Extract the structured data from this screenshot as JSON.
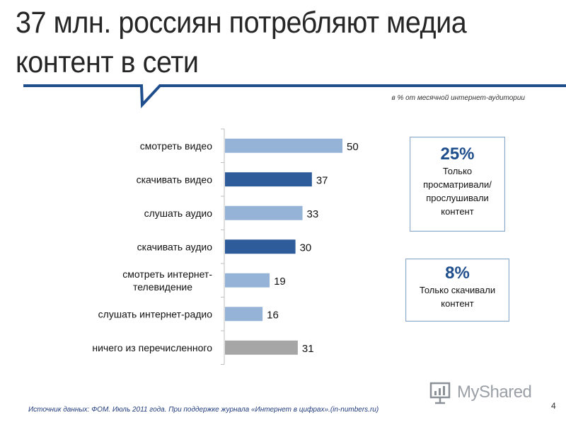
{
  "title": {
    "line1": "37 млн. россиян потребляют медиа",
    "line2": "контент в сети"
  },
  "subtitle": "в % от месячной интернет-аудитории",
  "chart_data": {
    "type": "bar",
    "orientation": "horizontal",
    "categories": [
      [
        "смотреть видео"
      ],
      [
        "скачивать видео"
      ],
      [
        "слушать аудио"
      ],
      [
        "скачивать аудио"
      ],
      [
        "смотреть интернет-",
        "телевидение"
      ],
      [
        "слушать интернет-радио"
      ],
      [
        "ничего из перечисленного"
      ]
    ],
    "values": [
      50,
      37,
      33,
      30,
      19,
      16,
      31
    ],
    "colors": [
      "#95b3d7",
      "#2e5c9a",
      "#95b3d7",
      "#2e5c9a",
      "#95b3d7",
      "#95b3d7",
      "#a6a6a6"
    ],
    "xlim": [
      0,
      60
    ],
    "grid": false
  },
  "callouts": [
    {
      "value": "25%",
      "lines": [
        "Только",
        "просматривали/",
        "прослушивали",
        "контент"
      ]
    },
    {
      "value": "8%",
      "lines": [
        "Только скачивали",
        "контент"
      ]
    }
  ],
  "source": "Источник данных: ФОМ. Июль 2011 года. При поддержке журнала «Интернет в цифрах».(in-numbers.ru)",
  "page_number": "4",
  "logo": {
    "text": "MyShared",
    "icon": "myshared-logo-icon"
  },
  "colors": {
    "accent": "#1f4e8c",
    "bar_light": "#95b3d7",
    "bar_dark": "#2e5c9a",
    "bar_gray": "#a6a6a6"
  }
}
